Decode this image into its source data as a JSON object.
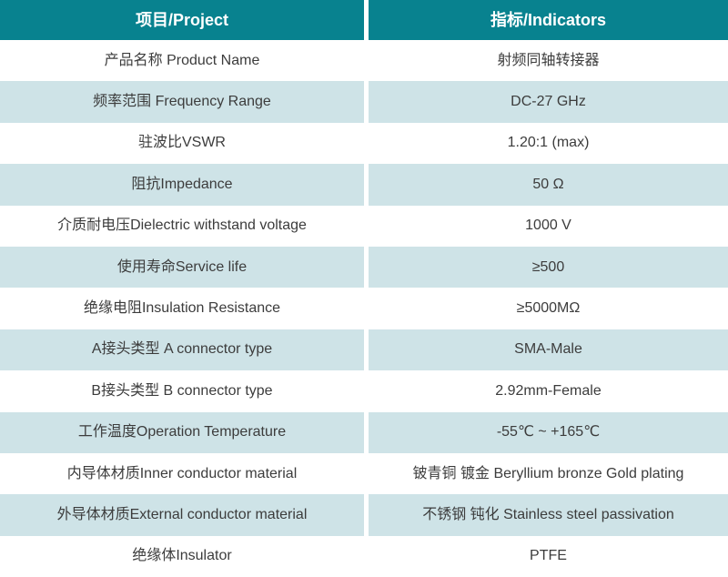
{
  "colors": {
    "header_bg": "#08828F",
    "header_text": "#FFFFFF",
    "alt_row_bg": "#CEE3E7",
    "text": "#3C3C3C"
  },
  "table": {
    "header": {
      "project": "项目/Project",
      "indicators": "指标/Indicators"
    },
    "rows": [
      {
        "project": "产品名称 Product Name",
        "indicator": "射频同轴转接器"
      },
      {
        "project": "频率范围 Frequency Range",
        "indicator": "DC-27 GHz"
      },
      {
        "project": "驻波比VSWR",
        "indicator": "1.20:1 (max)"
      },
      {
        "project": "阻抗Impedance",
        "indicator": "50 Ω"
      },
      {
        "project": "介质耐电压Dielectric withstand voltage",
        "indicator": "1000 V"
      },
      {
        "project": "使用寿命Service life",
        "indicator": "≥500"
      },
      {
        "project": "绝缘电阻Insulation Resistance",
        "indicator": "≥5000MΩ"
      },
      {
        "project": "A接头类型 A connector type",
        "indicator": "SMA-Male"
      },
      {
        "project": "B接头类型 B connector type",
        "indicator": "2.92mm-Female"
      },
      {
        "project": "工作温度Operation Temperature",
        "indicator": "-55℃ ~ +165℃"
      },
      {
        "project": "内导体材质Inner conductor material",
        "indicator": "铍青铜 镀金 Beryllium bronze Gold plating"
      },
      {
        "project": "外导体材质External conductor material",
        "indicator": "不锈钢 钝化 Stainless steel passivation"
      },
      {
        "project": "绝缘体Insulator",
        "indicator": "PTFE"
      }
    ]
  }
}
